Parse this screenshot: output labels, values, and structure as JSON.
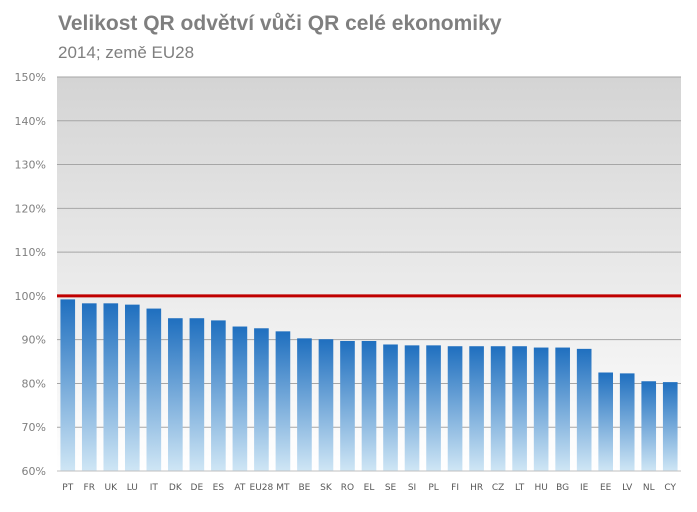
{
  "chart_data": {
    "type": "bar",
    "title": "Velikost QR odvětví vůči QR celé ekonomiky",
    "subtitle": "2014; země EU28",
    "xlabel": "",
    "ylabel": "",
    "ylim": [
      60,
      150
    ],
    "yticks": [
      "60%",
      "70%",
      "80%",
      "90%",
      "100%",
      "110%",
      "120%",
      "130%",
      "140%",
      "150%"
    ],
    "grid": true,
    "reference_line": {
      "value": 100,
      "color": "#c00000"
    },
    "bar_color_top": "#1f6fbf",
    "bar_color_bottom": "#cfe6f5",
    "categories": [
      "PT",
      "FR",
      "UK",
      "LU",
      "IT",
      "DK",
      "DE",
      "ES",
      "AT",
      "EU28",
      "MT",
      "BE",
      "SK",
      "RO",
      "EL",
      "SE",
      "SI",
      "PL",
      "FI",
      "HR",
      "CZ",
      "LT",
      "HU",
      "BG",
      "IE",
      "EE",
      "LV",
      "NL",
      "CY"
    ],
    "values": [
      99.2,
      98.3,
      98.3,
      98.0,
      97.1,
      94.9,
      94.9,
      94.4,
      93.0,
      92.6,
      91.9,
      90.3,
      90.1,
      89.7,
      89.7,
      88.9,
      88.7,
      88.7,
      88.5,
      88.5,
      88.5,
      88.5,
      88.2,
      88.2,
      87.9,
      82.5,
      82.3,
      80.5,
      80.3
    ]
  }
}
